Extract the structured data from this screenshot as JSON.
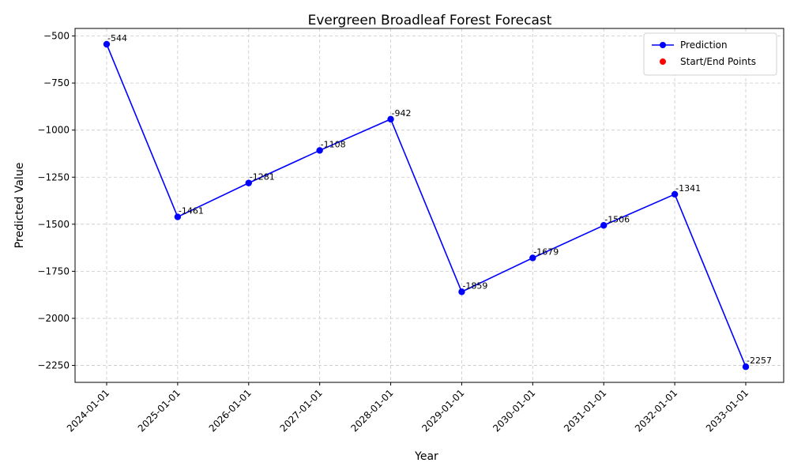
{
  "chart_data": {
    "type": "line",
    "title": "Evergreen Broadleaf Forest Forecast",
    "xlabel": "Year",
    "ylabel": "Predicted Value",
    "categories": [
      "2024-01-01",
      "2025-01-01",
      "2026-01-01",
      "2027-01-01",
      "2028-01-01",
      "2029-01-01",
      "2030-01-01",
      "2031-01-01",
      "2032-01-01",
      "2033-01-01"
    ],
    "series": [
      {
        "name": "Prediction",
        "color": "#0000ff",
        "values": [
          -544,
          -1461,
          -1281,
          -1108,
          -942,
          -1859,
          -1679,
          -1506,
          -1341,
          -2257
        ],
        "data_labels": [
          "-544",
          "-1461",
          "-1281",
          "-1108",
          "-942",
          "-1859",
          "-1679",
          "-1506",
          "-1341",
          "-2257"
        ]
      }
    ],
    "legend": {
      "placement": "top-right",
      "entries": [
        {
          "label": "Prediction",
          "color": "#0000ff",
          "marker": "line-circle"
        },
        {
          "label": "Start/End Points",
          "color": "#ff0000",
          "marker": "circle"
        }
      ]
    },
    "ylim": [
      -2340,
      -460
    ],
    "yticks": [
      -500,
      -750,
      -1000,
      -1250,
      -1500,
      -1750,
      -2000,
      -2250
    ],
    "ytick_labels": [
      "−500",
      "−750",
      "−1000",
      "−1250",
      "−1500",
      "−1750",
      "−2000",
      "−2250"
    ],
    "grid": true,
    "grid_style": "dashed"
  }
}
